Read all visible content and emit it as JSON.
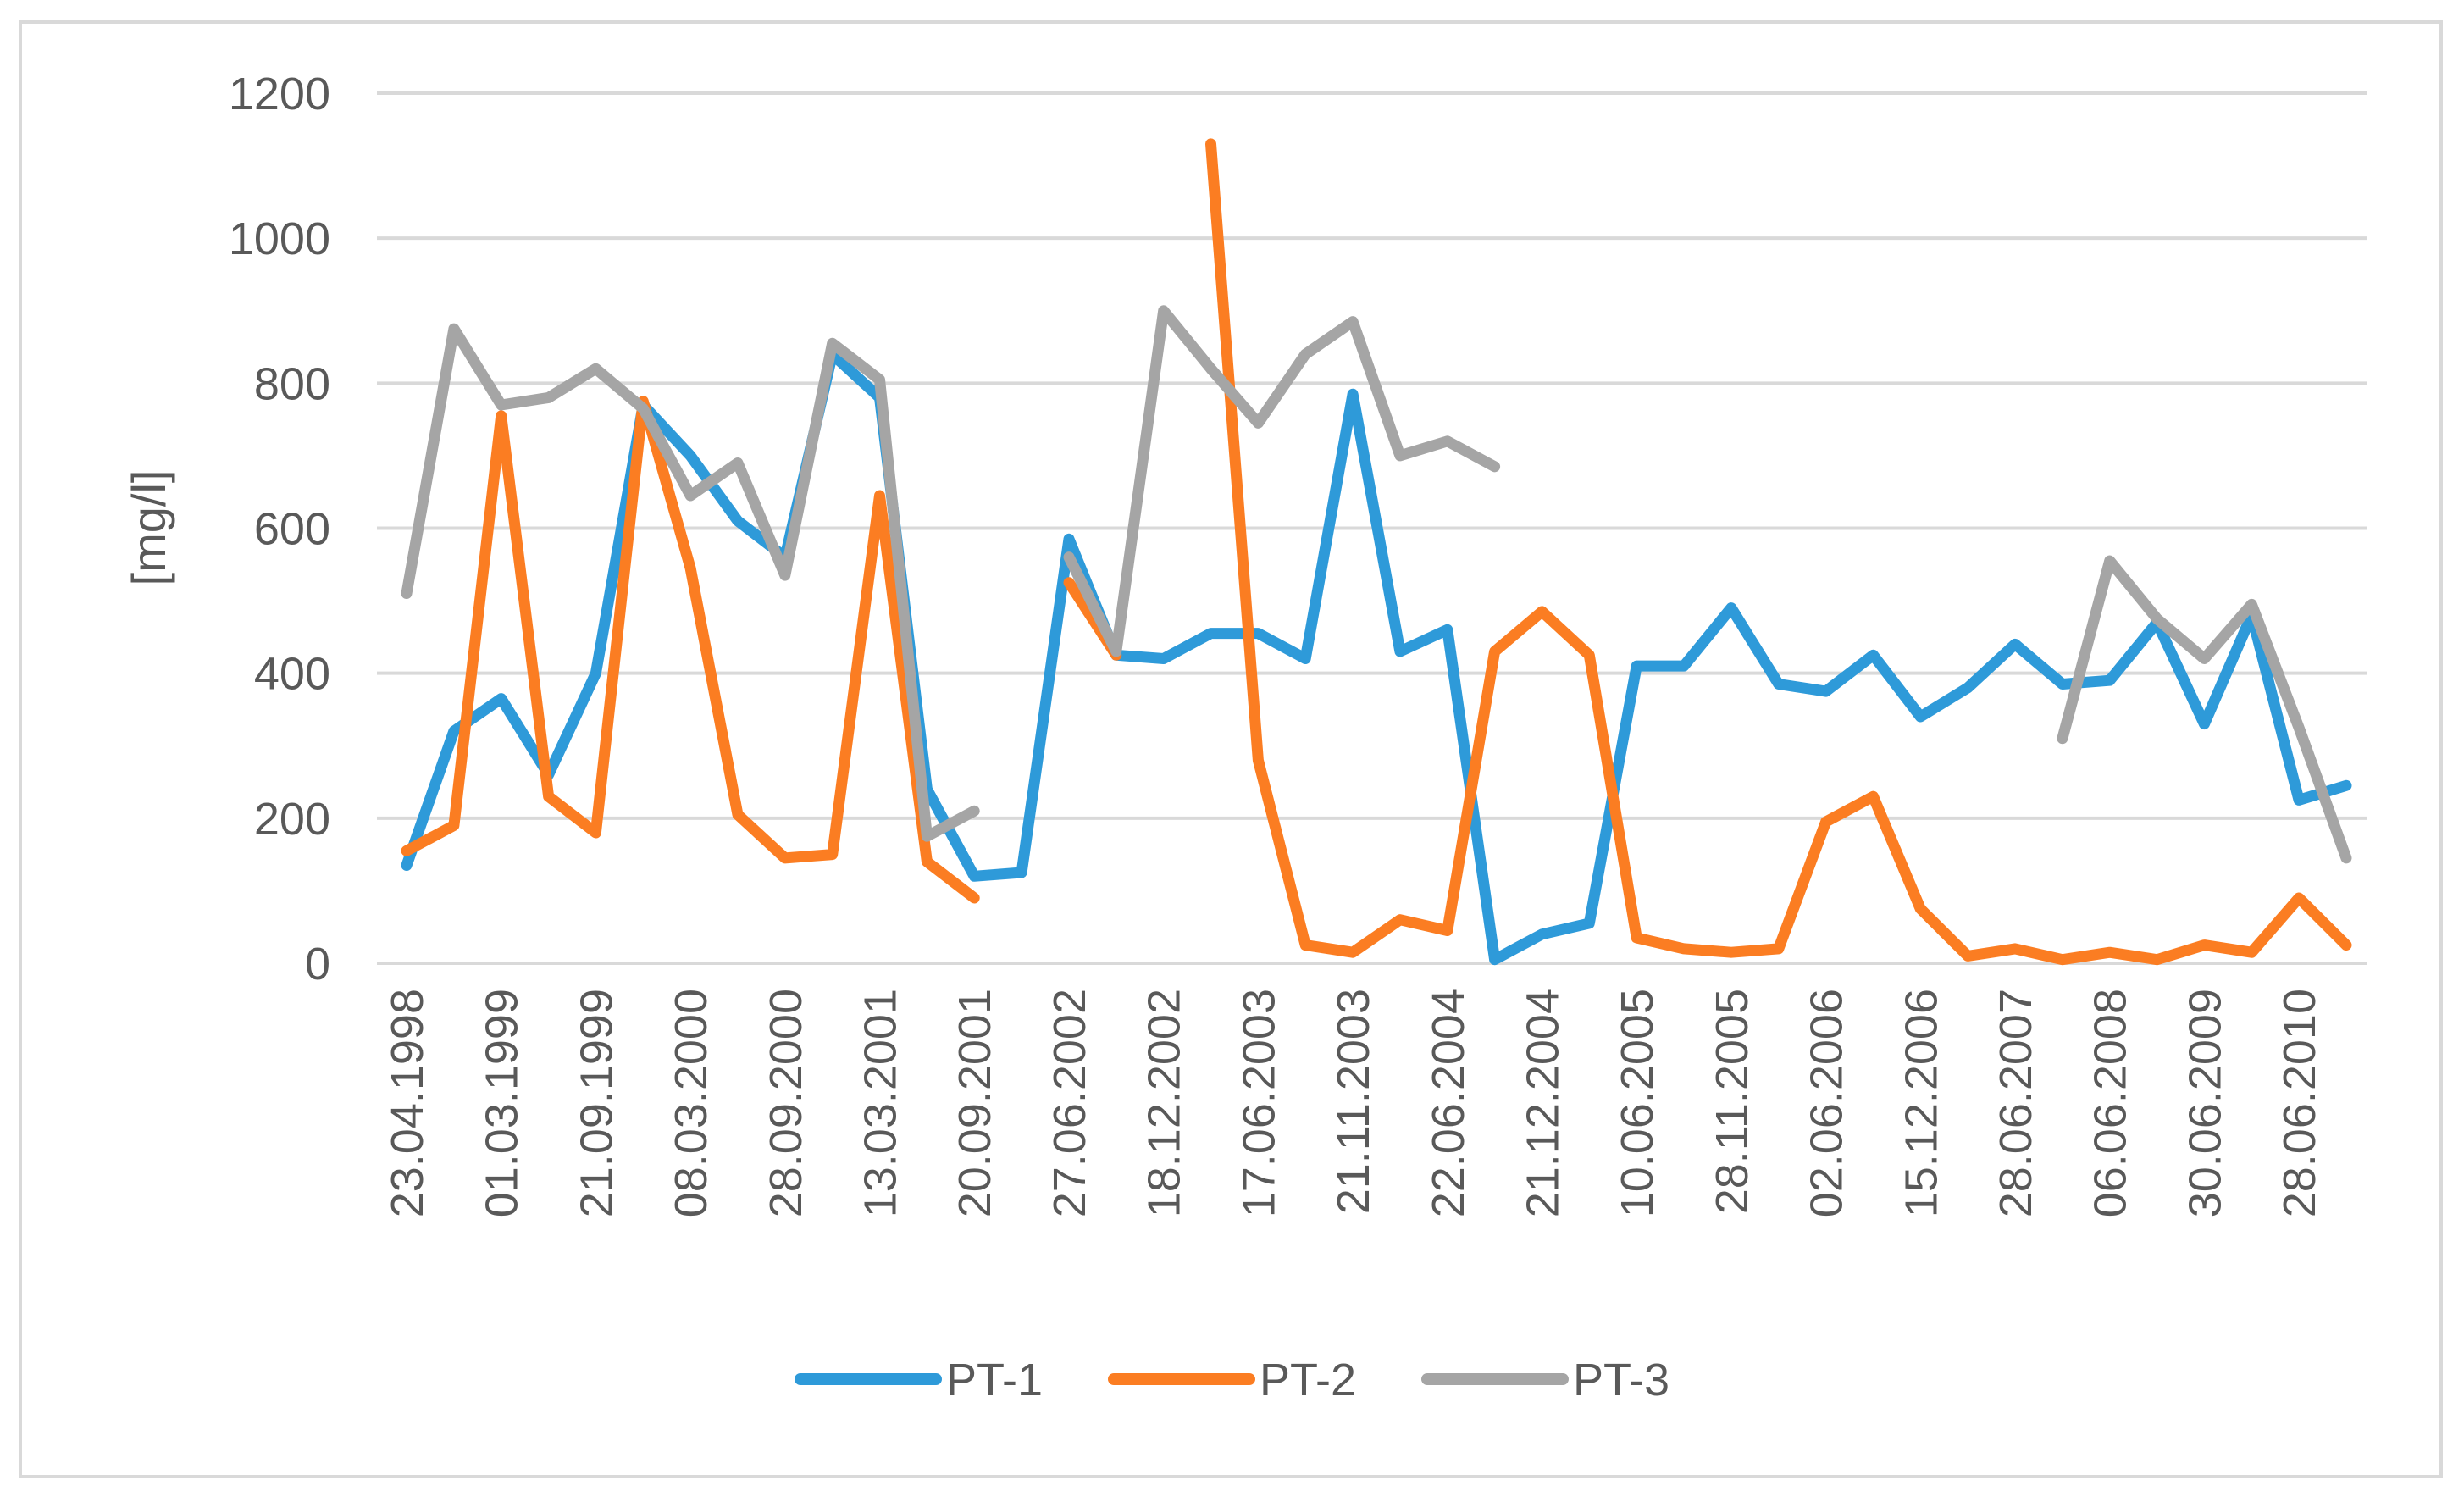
{
  "chart_data": {
    "type": "line",
    "title": "",
    "xlabel": "",
    "ylabel": "[mg/l]",
    "ylim": [
      0,
      1200
    ],
    "yticks": [
      0,
      200,
      400,
      600,
      800,
      1000,
      1200
    ],
    "grid": true,
    "legend": "bottom",
    "x_tick_labels": [
      "23.04.1998",
      "01.03.1999",
      "21.09.1999",
      "08.03.2000",
      "28.09.2000",
      "13.03.2001",
      "20.09.2001",
      "27.06.2002",
      "18.12.2002",
      "17.06.2003",
      "21.11.2003",
      "22.06.2004",
      "21.12.2004",
      "10.06.2005",
      "28.11.2005",
      "02.06.2006",
      "15.12.2006",
      "28.06.2007",
      "06.06.2008",
      "30.06.2009",
      "28.06.2010"
    ],
    "n_points": 42,
    "series": [
      {
        "name": "PT-1",
        "color": "#2e9ad9",
        "values": [
          135,
          320,
          365,
          260,
          400,
          770,
          700,
          610,
          560,
          840,
          780,
          240,
          120,
          125,
          585,
          425,
          420,
          455,
          455,
          420,
          785,
          430,
          460,
          5,
          40,
          55,
          410,
          410,
          490,
          385,
          375,
          425,
          340,
          380,
          440,
          385,
          390,
          470,
          330,
          480,
          225,
          245
        ]
      },
      {
        "name": "PT-2",
        "color": "#fb7d22",
        "values": [
          155,
          190,
          755,
          230,
          180,
          775,
          545,
          205,
          145,
          150,
          645,
          140,
          90,
          null,
          525,
          425,
          null,
          1130,
          280,
          25,
          15,
          60,
          45,
          430,
          485,
          425,
          35,
          20,
          15,
          20,
          195,
          230,
          75,
          10,
          20,
          5,
          15,
          5,
          25,
          15,
          90,
          25
        ]
      },
      {
        "name": "PT-3",
        "color": "#a5a5a5",
        "values": [
          510,
          875,
          770,
          780,
          820,
          765,
          645,
          690,
          535,
          855,
          805,
          175,
          210,
          null,
          560,
          430,
          900,
          820,
          745,
          840,
          885,
          700,
          720,
          685,
          null,
          null,
          null,
          null,
          null,
          null,
          null,
          null,
          null,
          null,
          null,
          310,
          555,
          475,
          420,
          495,
          325,
          145
        ]
      }
    ]
  }
}
